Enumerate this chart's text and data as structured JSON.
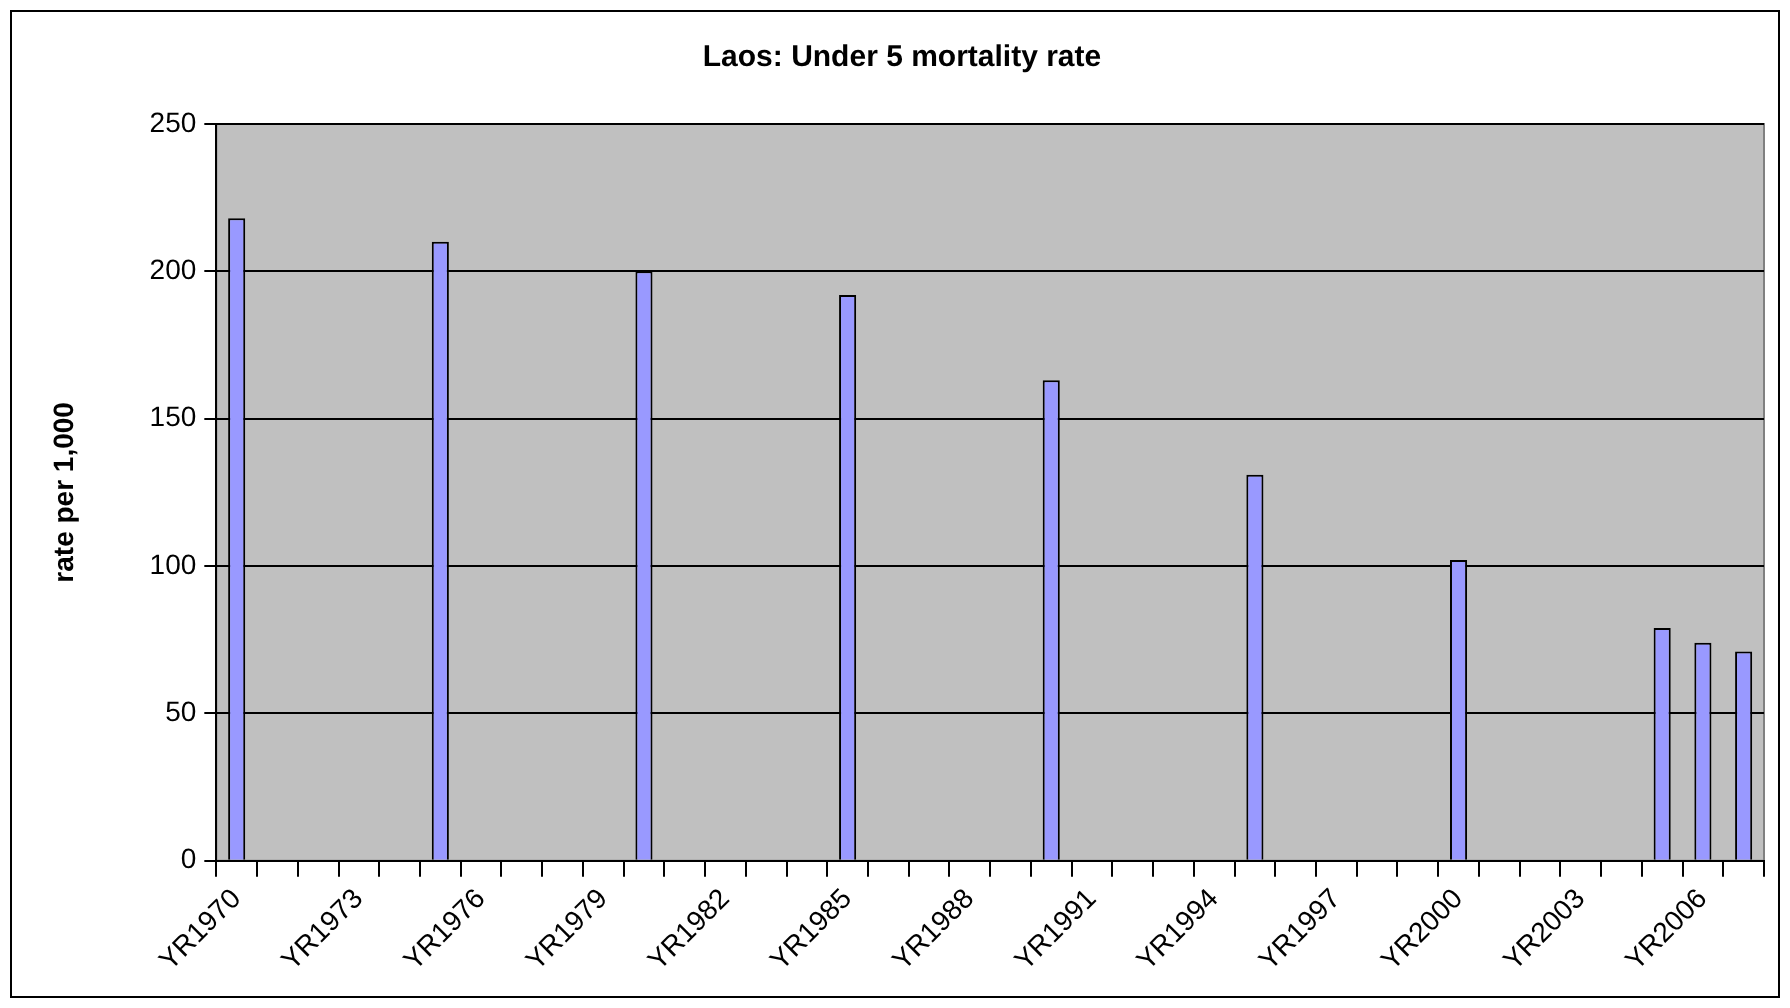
{
  "chart_data": {
    "type": "bar",
    "title": "Laos: Under 5 mortality rate",
    "ylabel": "rate per 1,000",
    "categories": [
      "YR1970",
      null,
      null,
      "YR1973",
      null,
      null,
      "YR1976",
      null,
      null,
      "YR1979",
      null,
      null,
      "YR1982",
      null,
      null,
      "YR1985",
      null,
      null,
      "YR1988",
      null,
      null,
      "YR1991",
      null,
      null,
      "YR1994",
      null,
      null,
      "YR1997",
      null,
      null,
      "YR2000",
      null,
      null,
      "YR2003",
      null,
      null,
      "YR2006",
      null
    ],
    "values": [
      218,
      null,
      null,
      null,
      null,
      210,
      null,
      null,
      null,
      null,
      200,
      null,
      null,
      null,
      null,
      192,
      null,
      null,
      null,
      null,
      163,
      null,
      null,
      null,
      null,
      131,
      null,
      null,
      null,
      null,
      102,
      null,
      null,
      null,
      null,
      79,
      74,
      71
    ],
    "color": "#9999ff",
    "ylim": [
      0,
      250
    ],
    "yticks": [
      0,
      50,
      100,
      150,
      200,
      250
    ],
    "grid": "y",
    "legend": false
  }
}
